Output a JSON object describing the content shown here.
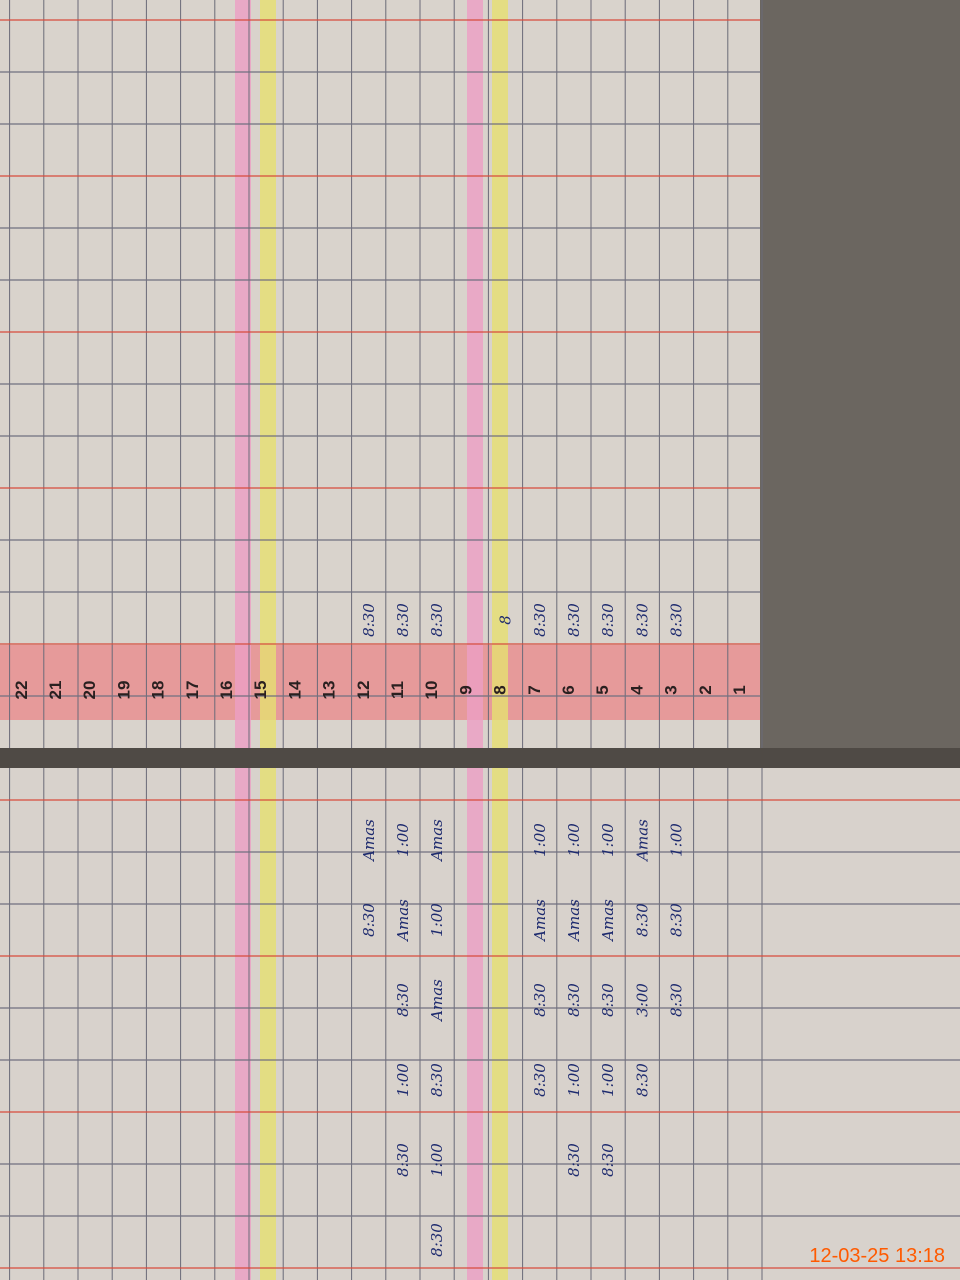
{
  "register": {
    "row_numbers": [
      "1",
      "2",
      "3",
      "4",
      "5",
      "6",
      "7",
      "8",
      "9",
      "10",
      "11",
      "12",
      "13",
      "14",
      "15",
      "16",
      "17",
      "18",
      "19",
      "20",
      "21",
      "22"
    ],
    "left_page_rows": [
      [],
      [],
      [
        "8:30"
      ],
      [
        "8:30"
      ],
      [
        "8:30"
      ],
      [
        "8:30"
      ],
      [
        "8:30"
      ],
      [
        "8"
      ],
      [],
      [
        "8:30"
      ],
      [
        "8:30"
      ],
      [
        "8:30"
      ],
      [],
      [],
      [],
      [],
      [],
      [],
      [],
      [],
      [],
      []
    ],
    "right_page_rows": [
      [],
      [],
      [
        "1:00",
        "8:30",
        "8:30"
      ],
      [
        "Amas",
        "8:30",
        "3:00",
        "8:30"
      ],
      [
        "1:00",
        "Amas",
        "8:30",
        "1:00",
        "8:30"
      ],
      [
        "1:00",
        "Amas",
        "8:30",
        "1:00",
        "8:30"
      ],
      [
        "1:00",
        "Amas",
        "8:30",
        "8:30"
      ],
      [],
      [],
      [
        "Amas",
        "1:00",
        "Amas",
        "8:30",
        "1:00",
        "8:30"
      ],
      [
        "1:00",
        "Amas",
        "8:30",
        "1:00",
        "8:30"
      ],
      [
        "Amas",
        "8:30"
      ],
      [],
      [],
      [],
      [],
      [],
      [],
      [],
      [],
      [],
      []
    ],
    "timestamp": "12-03-25  13:18"
  }
}
